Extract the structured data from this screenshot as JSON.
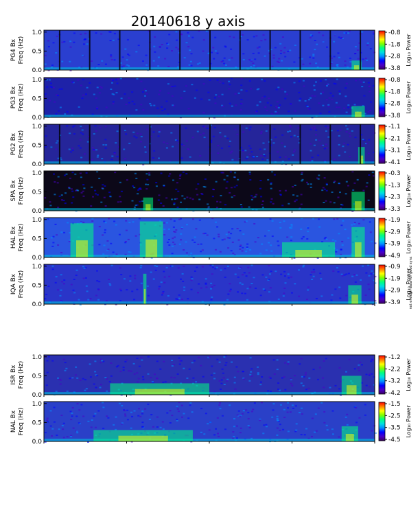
{
  "title": "20140618 y axis",
  "chart_data": [
    {
      "type": "heatmap",
      "station": "PG4 Bx",
      "ylabel": "Freq (Hz)",
      "yticks": [
        "1.0",
        "0.5",
        "0.0"
      ],
      "ylim": [
        0,
        1.05
      ],
      "colorbar": {
        "label": "Log₁₀ Power",
        "ticks": [
          "-0.8",
          "-1.8",
          "-2.8",
          "-3.8"
        ],
        "range": [
          -3.8,
          -0.8
        ]
      },
      "background": "#2a3fd0",
      "dropouts": true,
      "events": [
        {
          "start": 0.93,
          "end": 0.96,
          "fmax": 0.25
        }
      ]
    },
    {
      "type": "heatmap",
      "station": "PG3 Bx",
      "ylabel": "Freq (Hz)",
      "yticks": [
        "1.0",
        "0.5",
        "0.0"
      ],
      "ylim": [
        0,
        1.05
      ],
      "colorbar": {
        "label": "Log₁₀ Power",
        "ticks": [
          "-0.8",
          "-1.8",
          "-2.8",
          "-3.8"
        ],
        "range": [
          -3.8,
          -0.8
        ]
      },
      "background": "#1e22a8",
      "dropouts": false,
      "events": [
        {
          "start": 0.93,
          "end": 0.97,
          "fmax": 0.3
        }
      ]
    },
    {
      "type": "heatmap",
      "station": "PG2 Bx",
      "ylabel": "Freq (Hz)",
      "yticks": [
        "1.0",
        "0.5",
        "0.0"
      ],
      "ylim": [
        0,
        1.05
      ],
      "colorbar": {
        "label": "Log₁₀ Power",
        "ticks": [
          "-1.1",
          "-2.1",
          "-3.1",
          "-4.1"
        ],
        "range": [
          -4.1,
          -1.1
        ]
      },
      "background": "#25259a",
      "dropouts": true,
      "events": [
        {
          "start": 0.95,
          "end": 0.97,
          "fmax": 0.45
        }
      ]
    },
    {
      "type": "heatmap",
      "station": "SPA Bx",
      "ylabel": "Freq (Hz)",
      "yticks": [
        "1.0",
        "0.5",
        "0.0"
      ],
      "ylim": [
        0,
        1.05
      ],
      "colorbar": {
        "label": "Log₁₀ Power",
        "ticks": [
          "-0.3",
          "-1.3",
          "-2.3",
          "-3.3"
        ],
        "range": [
          -3.3,
          -0.3
        ]
      },
      "background": "#0c0818",
      "dropouts": false,
      "events": [
        {
          "start": 0.3,
          "end": 0.33,
          "fmax": 0.35
        },
        {
          "start": 0.93,
          "end": 0.97,
          "fmax": 0.5
        }
      ]
    },
    {
      "type": "heatmap",
      "station": "HAL Bx",
      "ylabel": "Freq (Hz)",
      "yticks": [
        "1.0",
        "0.5",
        "0.0"
      ],
      "ylim": [
        0,
        1.05
      ],
      "colorbar": {
        "label": "Log₁₀ Power",
        "ticks": [
          "-1.9",
          "-2.9",
          "-3.9",
          "-4.9"
        ],
        "range": [
          -4.9,
          -1.9
        ]
      },
      "background": "#2a55e0",
      "dropouts": false,
      "events": [
        {
          "start": 0.08,
          "end": 0.15,
          "fmax": 0.9
        },
        {
          "start": 0.29,
          "end": 0.36,
          "fmax": 0.95
        },
        {
          "start": 0.72,
          "end": 0.88,
          "fmax": 0.4
        },
        {
          "start": 0.93,
          "end": 0.97,
          "fmax": 0.8
        }
      ]
    },
    {
      "type": "heatmap",
      "station": "IQA Bx",
      "ylabel": "Freq (Hz)",
      "yticks": [
        "1.0",
        "0.5",
        "0.0"
      ],
      "ylim": [
        0,
        1.05
      ],
      "colorbar": {
        "label": "Log₁₀ Power",
        "ticks": [
          "-0.9",
          "-1.9",
          "-2.9",
          "-3.9"
        ],
        "range": [
          -3.9,
          -0.9
        ]
      },
      "background": "#2a35c8",
      "dropouts": false,
      "events": [
        {
          "start": 0.3,
          "end": 0.31,
          "fmax": 0.8
        },
        {
          "start": 0.92,
          "end": 0.96,
          "fmax": 0.5
        }
      ]
    },
    {
      "type": "heatmap",
      "station": "ISR Bx",
      "ylabel": "Freq (Hz)",
      "yticks": [
        "1.0",
        "0.5",
        "0.0"
      ],
      "ylim": [
        0,
        1.05
      ],
      "colorbar": {
        "label": "Log₁₀ Power",
        "ticks": [
          "-1.2",
          "-2.2",
          "-3.2",
          "-4.2"
        ],
        "range": [
          -4.2,
          -1.2
        ]
      },
      "background": "#2a30b0",
      "dropouts": false,
      "events": [
        {
          "start": 0.2,
          "end": 0.5,
          "fmax": 0.3
        },
        {
          "start": 0.9,
          "end": 0.96,
          "fmax": 0.5
        }
      ]
    },
    {
      "type": "heatmap",
      "station": "NAL Bx",
      "ylabel": "Freq (Hz)",
      "yticks": [
        "1.0",
        "0.5",
        "0.0"
      ],
      "ylim": [
        0,
        1.05
      ],
      "colorbar": {
        "label": "Log₁₀ Power",
        "ticks": [
          "-1.5",
          "-2.5",
          "-3.5",
          "-4.5"
        ],
        "range": [
          -4.5,
          -1.5
        ]
      },
      "background": "#2a40c8",
      "dropouts": false,
      "events": [
        {
          "start": 0.15,
          "end": 0.45,
          "fmax": 0.3
        },
        {
          "start": 0.9,
          "end": 0.95,
          "fmax": 0.4
        }
      ]
    }
  ],
  "colormap": [
    "#3a0060",
    "#4b00c8",
    "#0000ff",
    "#0090ff",
    "#00e0e0",
    "#00ff80",
    "#80ff00",
    "#ffff00",
    "#ff8000",
    "#ff0000"
  ],
  "side_note": "not enough data for good sync"
}
